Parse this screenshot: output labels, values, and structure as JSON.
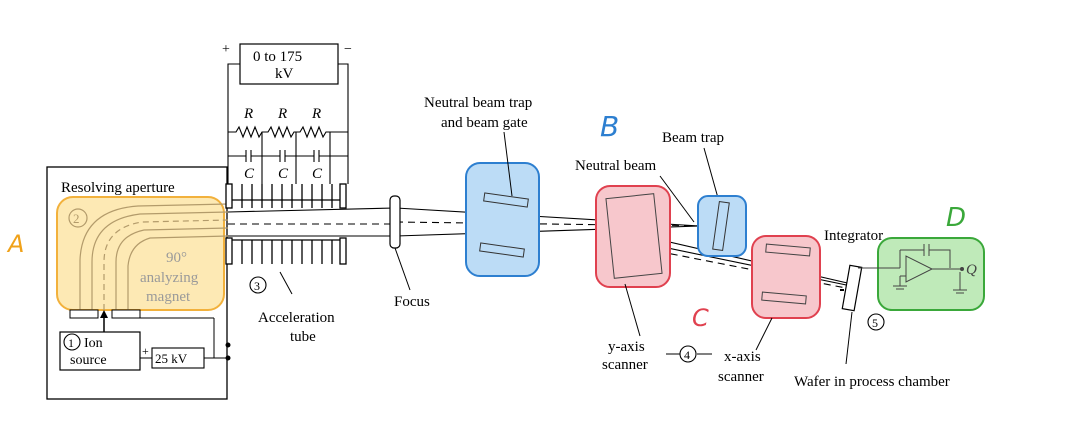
{
  "power_supply": {
    "label_line1": "0 to 175",
    "label_line2": "kV",
    "plus": "+",
    "minus": "−"
  },
  "divider": {
    "r_labels": [
      "R",
      "R",
      "R"
    ],
    "c_labels": [
      "C",
      "C",
      "C"
    ]
  },
  "labels": {
    "resolving_aperture": "Resolving aperture",
    "magnet_line1": "90°",
    "magnet_line2": "analyzing",
    "magnet_line3": "magnet",
    "ion_source_line1": "Ion",
    "ion_source_line2": "source",
    "ion_supply": "25 kV",
    "ion_plus": "+",
    "accel_tube_line1": "Acceleration",
    "accel_tube_line2": "tube",
    "focus": "Focus",
    "neutral_trap_line1": "Neutral beam trap",
    "neutral_trap_line2": "and beam gate",
    "neutral_beam": "Neutral beam",
    "beam_trap": "Beam trap",
    "y_scanner_line1": "y-axis",
    "y_scanner_line2": "scanner",
    "x_scanner_line1": "x-axis",
    "x_scanner_line2": "scanner",
    "integrator": "Integrator",
    "wafer": "Wafer in process chamber",
    "q": "Q"
  },
  "numbers": {
    "n1": "1",
    "n2": "2",
    "n3": "3",
    "n4": "4",
    "n5": "5"
  },
  "annotations": {
    "a": "A",
    "b": "B",
    "c": "C",
    "d": "D"
  },
  "colors": {
    "a_fill": "#fde9b4",
    "a_stroke": "#f2b13c",
    "a_text": "#f0a21a",
    "b_fill": "#bcdcf6",
    "b_stroke": "#2d7fd0",
    "b_text": "#2d7fd0",
    "c_fill": "#f7c7cc",
    "c_stroke": "#e0414f",
    "c_text": "#e0414f",
    "d_fill": "#bfeab9",
    "d_stroke": "#3aa83a",
    "d_text": "#3aa83a"
  }
}
